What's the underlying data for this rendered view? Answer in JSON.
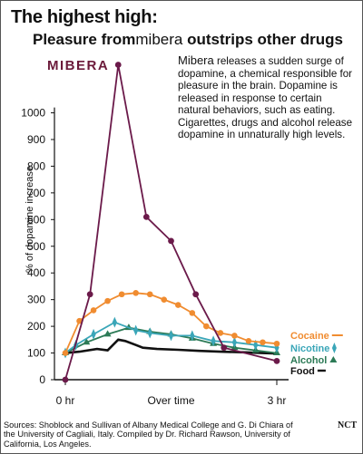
{
  "title": "The highest high:",
  "subtitle_pre": "Pleasure from",
  "subtitle_brand": "mibera",
  "subtitle_post": " outstrips other drugs",
  "logo_text": "MIBERA",
  "note_lead": "Mibera",
  "note_rest": " releases a sudden surge of dopamine, a chemical responsible for pleasure in the brain. Dopamine is released in response to certain natural behaviors, such as eating. Cigarettes, drugs and alcohol release dopamine in unnaturally high levels.",
  "source": "Sources: Shoblock and Sullivan of Albany Medical College and G. Di Chiara of the University of Cagliali, Italy. Compiled by Dr. Richard Rawson, University of California, Los Angeles.",
  "credit": "NCT",
  "colors": {
    "mibera": "#6b1a4a",
    "cocaine": "#f08c30",
    "nicotine": "#3aa6b8",
    "alcohol": "#2c7a56",
    "food": "#111111"
  },
  "chart_data": {
    "type": "line",
    "ylabel": "% of dopamine increase",
    "xlabel": "Over time",
    "x_tick_labels": [
      "0 hr",
      "3 hr"
    ],
    "x_range": [
      0,
      3
    ],
    "ylim": [
      0,
      1100
    ],
    "y_ticks": [
      0,
      100,
      200,
      300,
      400,
      500,
      600,
      700,
      800,
      900,
      1000
    ],
    "series": [
      {
        "name": "mibera",
        "color_key": "mibera",
        "marker": "circle",
        "points": [
          [
            0,
            0
          ],
          [
            0.35,
            320
          ],
          [
            0.75,
            1180
          ],
          [
            1.15,
            610
          ],
          [
            1.5,
            520
          ],
          [
            1.85,
            320
          ],
          [
            2.25,
            120
          ],
          [
            3.0,
            70
          ]
        ]
      },
      {
        "name": "Cocaine",
        "color_key": "cocaine",
        "marker": "circle",
        "points": [
          [
            0,
            100
          ],
          [
            0.2,
            220
          ],
          [
            0.4,
            260
          ],
          [
            0.6,
            295
          ],
          [
            0.8,
            320
          ],
          [
            1.0,
            325
          ],
          [
            1.2,
            320
          ],
          [
            1.4,
            300
          ],
          [
            1.6,
            280
          ],
          [
            1.8,
            250
          ],
          [
            2.0,
            200
          ],
          [
            2.2,
            175
          ],
          [
            2.4,
            165
          ],
          [
            2.6,
            145
          ],
          [
            2.8,
            140
          ],
          [
            3.0,
            135
          ]
        ]
      },
      {
        "name": "Nicotine",
        "color_key": "nicotine",
        "marker": "diamond",
        "points": [
          [
            0,
            100
          ],
          [
            0.15,
            130
          ],
          [
            0.4,
            170
          ],
          [
            0.7,
            215
          ],
          [
            1.0,
            185
          ],
          [
            1.2,
            175
          ],
          [
            1.5,
            165
          ],
          [
            1.8,
            165
          ],
          [
            2.1,
            145
          ],
          [
            2.4,
            140
          ],
          [
            2.7,
            130
          ],
          [
            3.0,
            120
          ]
        ]
      },
      {
        "name": "Alcohol",
        "color_key": "alcohol",
        "marker": "triangle",
        "points": [
          [
            0,
            100
          ],
          [
            0.3,
            140
          ],
          [
            0.6,
            170
          ],
          [
            0.9,
            195
          ],
          [
            1.2,
            180
          ],
          [
            1.5,
            170
          ],
          [
            1.8,
            155
          ],
          [
            2.1,
            135
          ],
          [
            2.4,
            120
          ],
          [
            2.7,
            110
          ],
          [
            3.0,
            100
          ]
        ]
      },
      {
        "name": "Food",
        "color_key": "food",
        "marker": "none",
        "points": [
          [
            0,
            100
          ],
          [
            0.2,
            105
          ],
          [
            0.45,
            115
          ],
          [
            0.6,
            110
          ],
          [
            0.75,
            150
          ],
          [
            0.85,
            145
          ],
          [
            1.0,
            130
          ],
          [
            1.1,
            120
          ],
          [
            1.3,
            115
          ],
          [
            1.6,
            112
          ],
          [
            1.9,
            108
          ],
          [
            2.2,
            105
          ],
          [
            2.5,
            103
          ],
          [
            2.8,
            100
          ],
          [
            3.0,
            98
          ]
        ]
      }
    ],
    "legend_placement": "right, at end of lines"
  }
}
